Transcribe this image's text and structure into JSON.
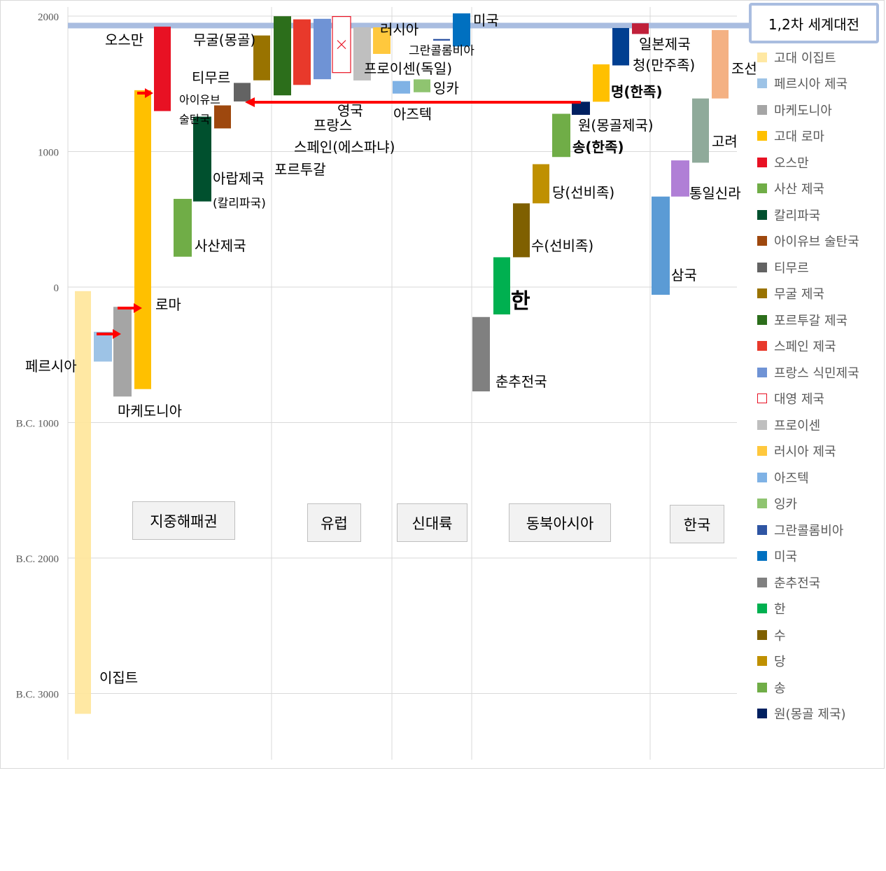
{
  "chart_data": {
    "type": "bar",
    "subtype": "floating-range (timeline)",
    "y_axis": {
      "range": [
        -3500,
        2100
      ],
      "ticks": [
        {
          "value": 2000,
          "label": "2000"
        },
        {
          "value": 1000,
          "label": "1000"
        },
        {
          "value": 0,
          "label": "0"
        },
        {
          "value": -1000,
          "label": "B.C. 1000"
        },
        {
          "value": -2000,
          "label": "B.C. 2000"
        },
        {
          "value": -3000,
          "label": "B.C. 3000"
        }
      ],
      "gridlines": true
    },
    "reference_line": {
      "value": 1930,
      "label": "1,2차 세계대전",
      "color": "#a9bde0"
    },
    "regions": [
      {
        "label": "지중해패권",
        "divider_after": true
      },
      {
        "label": "유럽",
        "divider_after": true
      },
      {
        "label": "신대륙",
        "divider_after": true
      },
      {
        "label": "동북아시아",
        "divider_after": true
      },
      {
        "label": "한국",
        "divider_after": false
      }
    ],
    "series": [
      {
        "name": "고대 이집트",
        "label": "이집트",
        "start": -3150,
        "end": -30,
        "color": "#ffe699",
        "opacity": 0.9
      },
      {
        "name": "페르시아 제국",
        "label": "페르시아",
        "start": -550,
        "end": -330,
        "color": "#9dc3e6"
      },
      {
        "name": "마케도니아",
        "label": "마케도니아",
        "start": -808,
        "end": -146,
        "color": "#a5a5a5"
      },
      {
        "name": "고대 로마",
        "label": "로마",
        "start": -753,
        "end": 1453,
        "color": "#ffc000"
      },
      {
        "name": "오스만",
        "label": "오스만",
        "start": 1299,
        "end": 1922,
        "color": "#e81123"
      },
      {
        "name": "사산 제국",
        "label": "사산제국",
        "start": 224,
        "end": 651,
        "color": "#70ad47"
      },
      {
        "name": "칼리파국",
        "label": "아랍제국",
        "label2": "(칼리파국)",
        "start": 632,
        "end": 1258,
        "color": "#00502e"
      },
      {
        "name": "아이유브 술탄국",
        "label": "아이유브",
        "label2": "술탄국",
        "start": 1171,
        "end": 1341,
        "color": "#9e480e"
      },
      {
        "name": "티무르",
        "label": "티무르",
        "start": 1370,
        "end": 1507,
        "color": "#636363"
      },
      {
        "name": "무굴 제국",
        "label": "무굴(몽골)",
        "start": 1526,
        "end": 1857,
        "color": "#997300"
      },
      {
        "name": "포르투갈 제국",
        "label": "포르투갈",
        "start": 1415,
        "end": 1999,
        "color": "#2c6e1b"
      },
      {
        "name": "스페인 제국",
        "label": "스페인(에스파냐)",
        "start": 1492,
        "end": 1976,
        "color": "#e8392b"
      },
      {
        "name": "프랑스 식민제국",
        "label": "프랑스",
        "start": 1534,
        "end": 1980,
        "color": "#6f93d5"
      },
      {
        "name": "대영 제국",
        "label": "영국",
        "start": 1583,
        "end": 1997,
        "color": "#ffffff",
        "outline": "#e81123"
      },
      {
        "name": "프로이센",
        "label": "프로이센(독일)",
        "start": 1525,
        "end": 1918,
        "color": "#bfbfbf"
      },
      {
        "name": "러시아 제국",
        "label": "러시아",
        "start": 1721,
        "end": 1917,
        "color": "#ffc83d"
      },
      {
        "name": "아즈텍",
        "label": "아즈텍",
        "start": 1428,
        "end": 1521,
        "color": "#7fb2e5"
      },
      {
        "name": "잉카",
        "label": "잉카",
        "start": 1438,
        "end": 1533,
        "color": "#8fc470"
      },
      {
        "name": "그란콜롬비아",
        "label": "그란콜롬비아",
        "start": 1819,
        "end": 1831,
        "color": "#2f55a3"
      },
      {
        "name": "미국",
        "label": "미국",
        "start": 1776,
        "end": 2020,
        "color": "#0070c0"
      },
      {
        "name": "춘추전국",
        "label": "춘추전국",
        "start": -770,
        "end": -221,
        "color": "#808080"
      },
      {
        "name": "한",
        "label": "한",
        "start": -202,
        "end": 220,
        "color": "#00b050"
      },
      {
        "name": "수",
        "label": "수(선비족)",
        "start": 220,
        "end": 618,
        "color": "#7f6000"
      },
      {
        "name": "당",
        "label": "당(선비족)",
        "start": 618,
        "end": 907,
        "color": "#bf9000"
      },
      {
        "name": "송",
        "label": "송(한족)",
        "start": 960,
        "end": 1279,
        "color": "#70ad47"
      },
      {
        "name": "원(몽골 제국)",
        "label": "원(몽골제국)",
        "start": 1271,
        "end": 1368,
        "color": "#002060"
      }
    ],
    "unlisted_series": [
      {
        "label": "명(한족)",
        "start": 1368,
        "end": 1644,
        "color": "#ffc000"
      },
      {
        "label": "청(만주족)",
        "start": 1636,
        "end": 1912,
        "color": "#003f91"
      },
      {
        "label": "일본제국",
        "start": 1868,
        "end": 1947,
        "color": "#c0203a"
      },
      {
        "label": "삼국",
        "start": -57,
        "end": 668,
        "color": "#5b9bd5"
      },
      {
        "label": "통일신라",
        "start": 668,
        "end": 935,
        "color": "#b07fd6"
      },
      {
        "label": "고려",
        "start": 918,
        "end": 1392,
        "color": "#8faa9a"
      },
      {
        "label": "조선",
        "start": 1392,
        "end": 1897,
        "color": "#f4b183"
      }
    ]
  }
}
